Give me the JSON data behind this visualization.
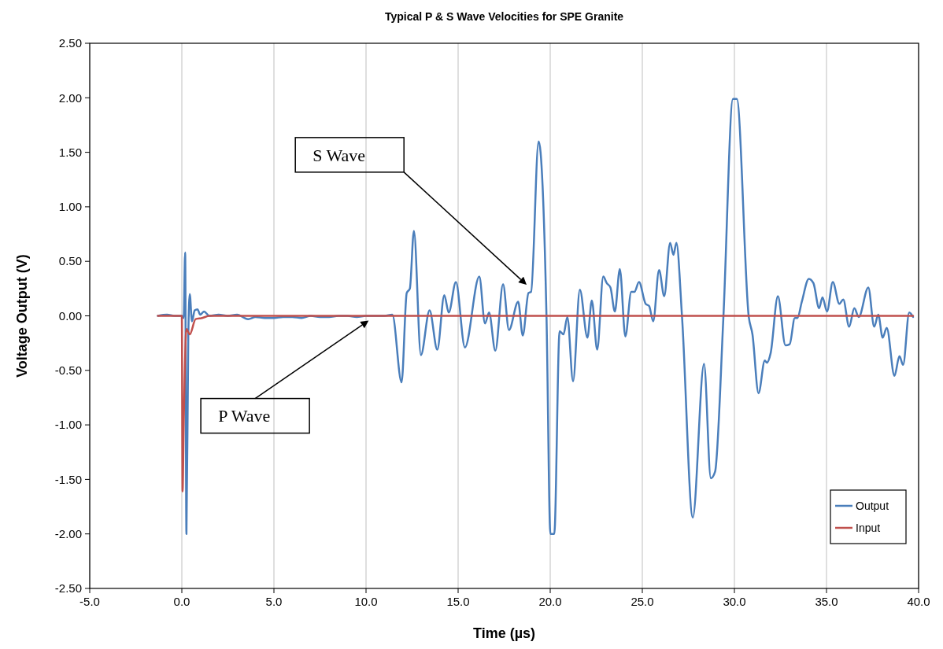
{
  "chart_data": {
    "type": "line",
    "title": "Typical P & S Wave Velocities for SPE Granite",
    "xlabel": "Time (µs)",
    "ylabel": "Voltage Output (V)",
    "xlim": [
      -5,
      40
    ],
    "ylim": [
      -2.5,
      2.5
    ],
    "xticks": [
      {
        "value": -5,
        "label": "-5.0"
      },
      {
        "value": 0,
        "label": "0.0"
      },
      {
        "value": 5,
        "label": "5.0"
      },
      {
        "value": 10,
        "label": "10.0"
      },
      {
        "value": 15,
        "label": "15.0"
      },
      {
        "value": 20,
        "label": "20.0"
      },
      {
        "value": 25,
        "label": "25.0"
      },
      {
        "value": 30,
        "label": "30.0"
      },
      {
        "value": 35,
        "label": "35.0"
      },
      {
        "value": 40,
        "label": "40.0"
      }
    ],
    "yticks": [
      {
        "value": -2.5,
        "label": "-2.50"
      },
      {
        "value": -2,
        "label": "-2.00"
      },
      {
        "value": -1.5,
        "label": "-1.50"
      },
      {
        "value": -1,
        "label": "-1.00"
      },
      {
        "value": -0.5,
        "label": "-0.50"
      },
      {
        "value": 0,
        "label": "0.00"
      },
      {
        "value": 0.5,
        "label": "0.50"
      },
      {
        "value": 1,
        "label": "1.00"
      },
      {
        "value": 1.5,
        "label": "1.50"
      },
      {
        "value": 2,
        "label": "2.00"
      },
      {
        "value": 2.5,
        "label": "2.50"
      }
    ],
    "grid": "x",
    "legend": "bottom right",
    "marker": "none",
    "line_style": "solid",
    "annotations": [
      "S Wave",
      "P Wave"
    ],
    "series": [
      {
        "name": "Output",
        "color": "#4a7ebb",
        "x": [
          -1.3,
          -0.8,
          -0.4,
          0.0,
          0.1,
          0.18,
          0.25,
          0.35,
          0.43,
          0.55,
          0.7,
          0.85,
          1.0,
          1.2,
          1.5,
          2.0,
          2.5,
          3.0,
          3.6,
          4.0,
          4.5,
          5.0,
          5.5,
          6.0,
          6.5,
          7.0,
          7.5,
          8.0,
          8.5,
          9.0,
          9.5,
          10.0,
          10.5,
          11.0,
          11.43,
          11.93,
          12.21,
          12.38,
          12.6,
          12.98,
          13.45,
          13.87,
          14.25,
          14.49,
          14.88,
          15.37,
          16.15,
          16.46,
          16.68,
          17.02,
          17.44,
          17.76,
          18.26,
          18.51,
          18.82,
          18.96,
          19.37,
          19.8,
          20.01,
          20.22,
          20.51,
          20.72,
          20.93,
          21.24,
          21.61,
          22.02,
          22.26,
          22.55,
          22.88,
          23.07,
          23.27,
          23.51,
          23.78,
          24.08,
          24.4,
          24.57,
          24.82,
          25.18,
          25.37,
          25.59,
          25.91,
          26.19,
          26.51,
          26.69,
          26.85,
          27.16,
          27.74,
          28.35,
          28.72,
          28.95,
          29.4,
          29.92,
          30.13,
          30.78,
          30.98,
          31.31,
          31.65,
          31.76,
          31.97,
          32.36,
          32.77,
          33.0,
          33.28,
          33.42,
          33.66,
          34.04,
          34.29,
          34.6,
          34.78,
          35.03,
          35.34,
          35.7,
          35.91,
          36.23,
          36.51,
          36.75,
          37.27,
          37.59,
          37.81,
          38.05,
          38.27,
          38.69,
          38.96,
          39.16,
          39.49,
          39.7
        ],
        "values": [
          0.0,
          0.01,
          0.0,
          0.0,
          -0.02,
          0.58,
          -2.0,
          -0.2,
          0.2,
          -0.05,
          0.05,
          0.06,
          0.01,
          0.04,
          0.0,
          0.01,
          0.0,
          0.01,
          -0.03,
          -0.01,
          -0.02,
          -0.02,
          -0.01,
          -0.01,
          -0.02,
          0.0,
          -0.01,
          -0.01,
          0.0,
          0.0,
          -0.01,
          0.0,
          0.0,
          0.0,
          0.01,
          -0.61,
          0.21,
          0.25,
          0.78,
          -0.36,
          0.05,
          -0.31,
          0.19,
          0.03,
          0.31,
          -0.29,
          0.36,
          -0.07,
          0.03,
          -0.32,
          0.29,
          -0.13,
          0.13,
          -0.18,
          0.21,
          0.22,
          1.6,
          -0.02,
          -2.0,
          -2.0,
          -0.14,
          -0.17,
          -0.01,
          -0.6,
          0.24,
          -0.2,
          0.14,
          -0.31,
          0.36,
          0.3,
          0.26,
          0.04,
          0.43,
          -0.19,
          0.22,
          0.22,
          0.31,
          0.11,
          0.09,
          -0.05,
          0.42,
          0.18,
          0.67,
          0.56,
          0.67,
          -0.02,
          -1.85,
          -0.44,
          -1.49,
          -1.43,
          -0.02,
          1.99,
          1.99,
          -0.01,
          -0.17,
          -0.71,
          -0.41,
          -0.43,
          -0.34,
          0.18,
          -0.27,
          -0.26,
          -0.02,
          -0.02,
          0.13,
          0.34,
          0.3,
          0.07,
          0.17,
          0.04,
          0.31,
          0.11,
          0.15,
          -0.1,
          0.07,
          -0.01,
          0.26,
          -0.1,
          0.01,
          -0.2,
          -0.11,
          -0.55,
          -0.37,
          -0.45,
          0.03,
          -0.01
        ]
      },
      {
        "name": "Input",
        "color": "#c0504d",
        "x": [
          -1.3,
          0.0,
          0.04,
          0.11,
          0.25,
          0.43,
          0.75,
          1.1,
          1.5,
          39.7
        ],
        "values": [
          0.0,
          0.0,
          -1.61,
          -0.92,
          -0.12,
          -0.17,
          -0.03,
          -0.02,
          0.0,
          0.0
        ]
      }
    ]
  }
}
